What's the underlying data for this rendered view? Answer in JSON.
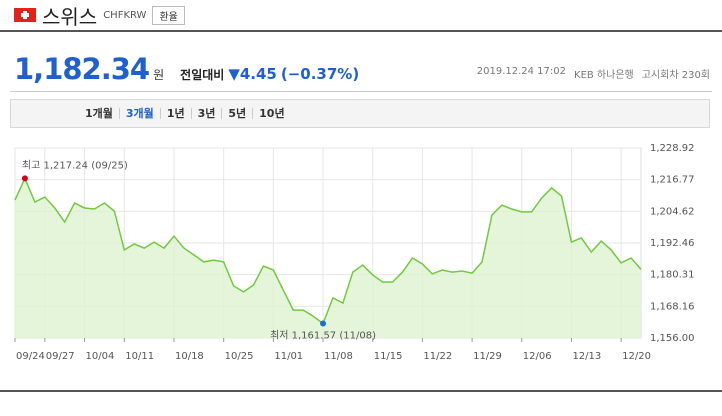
{
  "header": {
    "country": "스위스",
    "code": "CHFKRW",
    "button": "환율"
  },
  "price": {
    "value": "1,182.34",
    "unit": "원",
    "change_label": "전일대비",
    "change": "▼4.45",
    "change_pct": "(−0.37%)",
    "datetime": "2019.12.24 17:02",
    "bank": "KEB 하나은행",
    "round": "고시회차 230회"
  },
  "tabs": {
    "items": [
      "1개월",
      "3개월",
      "1년",
      "3년",
      "5년",
      "10년"
    ],
    "selected": "3개월"
  },
  "chart_data": {
    "type": "area",
    "color": "#72c93f",
    "fill": "#dff3cf",
    "categories": [
      "09/24",
      null,
      null,
      "09/27",
      null,
      null,
      null,
      "10/04",
      null,
      null,
      null,
      "10/11",
      null,
      null,
      null,
      null,
      "10/18",
      null,
      null,
      null,
      null,
      "10/25",
      null,
      null,
      null,
      null,
      "11/01",
      null,
      null,
      null,
      null,
      "11/08",
      null,
      null,
      null,
      null,
      "11/15",
      null,
      null,
      null,
      null,
      "11/22",
      null,
      null,
      null,
      null,
      "11/29",
      null,
      null,
      null,
      null,
      "12/06",
      null,
      null,
      null,
      null,
      "12/13",
      null,
      null,
      null,
      null,
      "12/20",
      null,
      null
    ],
    "values": [
      1208.96,
      1217.24,
      1208.2,
      1210.1,
      1205.9,
      1200.5,
      1207.8,
      1205.9,
      1205.5,
      1207.8,
      1204.7,
      1189.8,
      1192.1,
      1190.5,
      1192.8,
      1190.5,
      1195.1,
      1190.5,
      1187.9,
      1185.2,
      1185.9,
      1185.2,
      1176.0,
      1173.7,
      1176.3,
      1183.6,
      1182.1,
      1174.4,
      1166.7,
      1166.7,
      1164.4,
      1161.57,
      1171.4,
      1169.4,
      1181.3,
      1184.0,
      1180.2,
      1177.5,
      1177.5,
      1181.3,
      1186.7,
      1184.4,
      1180.6,
      1182.1,
      1181.3,
      1181.7,
      1180.9,
      1185.2,
      1203.2,
      1207.0,
      1205.5,
      1204.4,
      1204.4,
      1209.7,
      1213.6,
      1210.5,
      1192.8,
      1194.4,
      1189.0,
      1193.2,
      1189.8,
      1184.8,
      1186.7,
      1182.34
    ],
    "ylim": [
      1156.0,
      1228.92
    ],
    "yticks": [
      {
        "value": 1156.0,
        "label": "1,156.00"
      },
      {
        "value": 1168.16,
        "label": "1,168.16"
      },
      {
        "value": 1180.31,
        "label": "1,180.31"
      },
      {
        "value": 1192.46,
        "label": "1,192.46"
      },
      {
        "value": 1204.62,
        "label": "1,204.62"
      },
      {
        "value": 1216.77,
        "label": "1,216.77"
      },
      {
        "value": 1228.92,
        "label": "1,228.92"
      }
    ],
    "grid": true,
    "annotations": {
      "max": {
        "text": "최고 1,217.24 (09/25)",
        "color": "#d0021b"
      },
      "min": {
        "text": "최저 1,161.57 (11/08)",
        "color": "#1a6fd0"
      }
    }
  }
}
